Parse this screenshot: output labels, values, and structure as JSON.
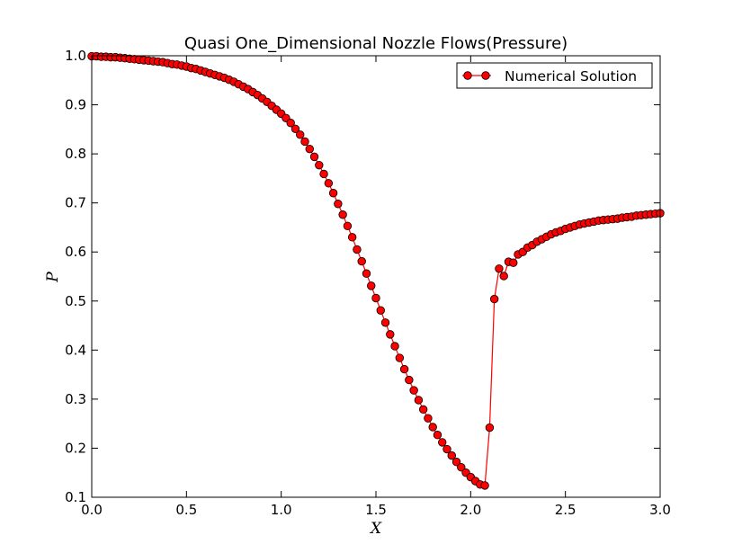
{
  "chart_data": {
    "type": "line",
    "title": "Quasi One_Dimensional Nozzle Flows(Pressure)",
    "xlabel": "X",
    "ylabel": "P",
    "xlim": [
      0.0,
      3.0
    ],
    "ylim": [
      0.1,
      1.0
    ],
    "xticks": [
      "0.0",
      "0.5",
      "1.0",
      "1.5",
      "2.0",
      "2.5",
      "3.0"
    ],
    "yticks": [
      "0.1",
      "0.2",
      "0.3",
      "0.4",
      "0.5",
      "0.6",
      "0.7",
      "0.8",
      "0.9",
      "1.0"
    ],
    "grid": false,
    "legend_position": "top-right",
    "colors": {
      "line": "#ff0000",
      "marker_fill": "#ff0000",
      "marker_edge": "#000000"
    },
    "series": [
      {
        "name": "Numerical Solution",
        "marker": "circle",
        "x": [
          0.0,
          0.025,
          0.05,
          0.075,
          0.1,
          0.125,
          0.15,
          0.175,
          0.2,
          0.225,
          0.25,
          0.275,
          0.3,
          0.325,
          0.35,
          0.375,
          0.4,
          0.425,
          0.45,
          0.475,
          0.5,
          0.525,
          0.55,
          0.575,
          0.6,
          0.625,
          0.65,
          0.675,
          0.7,
          0.725,
          0.75,
          0.775,
          0.8,
          0.825,
          0.85,
          0.875,
          0.9,
          0.925,
          0.95,
          0.975,
          1.0,
          1.025,
          1.05,
          1.075,
          1.1,
          1.125,
          1.15,
          1.175,
          1.2,
          1.225,
          1.25,
          1.275,
          1.3,
          1.325,
          1.35,
          1.375,
          1.4,
          1.425,
          1.45,
          1.475,
          1.5,
          1.525,
          1.55,
          1.575,
          1.6,
          1.625,
          1.65,
          1.675,
          1.7,
          1.725,
          1.75,
          1.775,
          1.8,
          1.825,
          1.85,
          1.875,
          1.9,
          1.925,
          1.95,
          1.975,
          2.0,
          2.025,
          2.05,
          2.075,
          2.1,
          2.125,
          2.15,
          2.175,
          2.2,
          2.225,
          2.25,
          2.275,
          2.3,
          2.325,
          2.35,
          2.375,
          2.4,
          2.425,
          2.45,
          2.475,
          2.5,
          2.525,
          2.55,
          2.575,
          2.6,
          2.625,
          2.65,
          2.675,
          2.7,
          2.725,
          2.75,
          2.775,
          2.8,
          2.825,
          2.85,
          2.875,
          2.9,
          2.925,
          2.95,
          2.975,
          3.0
        ],
        "y": [
          0.999,
          0.999,
          0.998,
          0.998,
          0.997,
          0.997,
          0.996,
          0.995,
          0.994,
          0.993,
          0.992,
          0.991,
          0.99,
          0.989,
          0.988,
          0.987,
          0.985,
          0.983,
          0.982,
          0.98,
          0.978,
          0.975,
          0.973,
          0.97,
          0.967,
          0.964,
          0.961,
          0.958,
          0.955,
          0.951,
          0.947,
          0.942,
          0.937,
          0.932,
          0.926,
          0.92,
          0.913,
          0.906,
          0.898,
          0.89,
          0.882,
          0.873,
          0.863,
          0.851,
          0.839,
          0.825,
          0.81,
          0.794,
          0.777,
          0.759,
          0.74,
          0.72,
          0.698,
          0.676,
          0.653,
          0.63,
          0.605,
          0.581,
          0.556,
          0.531,
          0.506,
          0.481,
          0.456,
          0.432,
          0.408,
          0.384,
          0.361,
          0.339,
          0.318,
          0.298,
          0.279,
          0.261,
          0.243,
          0.227,
          0.212,
          0.198,
          0.185,
          0.172,
          0.161,
          0.15,
          0.141,
          0.133,
          0.126,
          0.124,
          0.242,
          0.504,
          0.566,
          0.551,
          0.58,
          0.578,
          0.595,
          0.6,
          0.609,
          0.614,
          0.621,
          0.626,
          0.631,
          0.636,
          0.64,
          0.643,
          0.647,
          0.65,
          0.653,
          0.656,
          0.658,
          0.66,
          0.662,
          0.664,
          0.665,
          0.666,
          0.667,
          0.668,
          0.67,
          0.671,
          0.672,
          0.674,
          0.675,
          0.676,
          0.677,
          0.678,
          0.679
        ]
      }
    ]
  }
}
